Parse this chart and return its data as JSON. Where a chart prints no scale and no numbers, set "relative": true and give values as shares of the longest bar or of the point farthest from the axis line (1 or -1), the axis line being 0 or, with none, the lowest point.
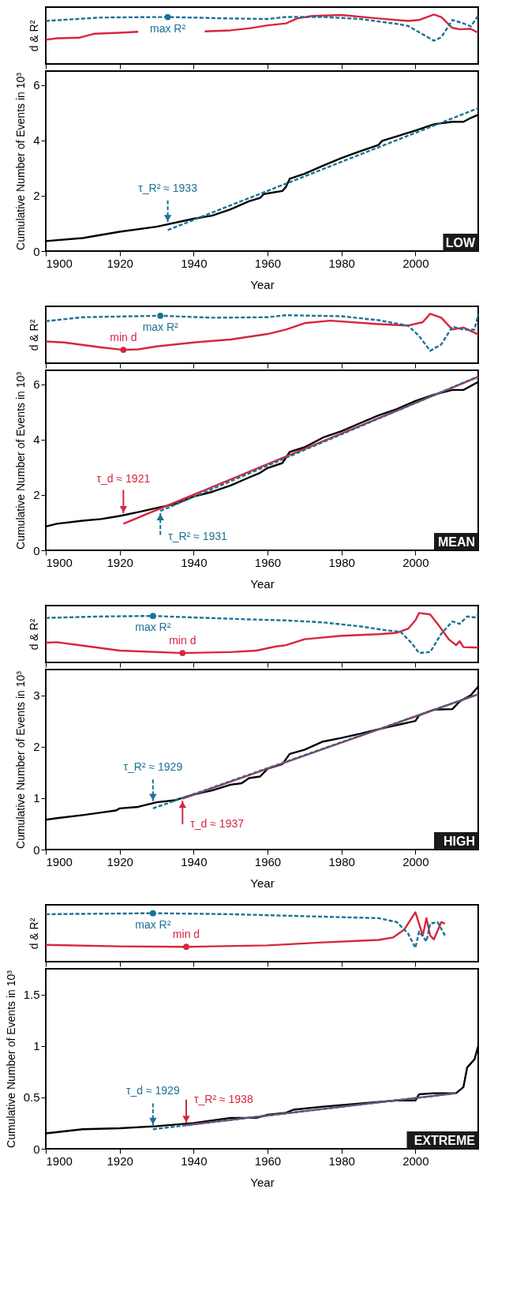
{
  "chart_data": [
    {
      "type": "line",
      "relative": true,
      "ylabel": "d & R²",
      "xlim": [
        1900,
        2017
      ],
      "xticks": [
        1900,
        1920,
        1940,
        1960,
        1980,
        2000
      ],
      "tick_labels": false,
      "series": [
        {
          "color": "#d7263d",
          "line_style": "solid",
          "x": [
            1900,
            1903,
            1909,
            1913,
            1920,
            1925,
            1934,
            1943,
            1950,
            1955,
            1960,
            1965,
            1968,
            1972,
            1980,
            1990,
            1998,
            2001,
            2005,
            2007,
            2010,
            2012,
            2015,
            2017
          ],
          "values": [
            0.49,
            0.52,
            0.53,
            0.61,
            0.63,
            0.65,
            null,
            0.66,
            0.68,
            0.72,
            0.78,
            0.82,
            0.92,
            0.97,
            0.99,
            0.92,
            0.87,
            0.89,
            1.0,
            0.95,
            0.73,
            0.7,
            0.71,
            0.63
          ]
        },
        {
          "color": "#1b7196",
          "line_style": "dashed",
          "x": [
            1900,
            1915,
            1933,
            1950,
            1960,
            1965,
            1975,
            1985,
            1995,
            1998,
            2002,
            2005,
            2007,
            2010,
            2013,
            2015,
            2017
          ],
          "values": [
            0.87,
            0.94,
            0.95,
            0.92,
            0.91,
            0.95,
            0.95,
            0.91,
            0.81,
            0.77,
            0.6,
            0.47,
            0.54,
            0.89,
            0.82,
            0.76,
            0.98
          ]
        }
      ],
      "annotations": [
        {
          "text": "max R²",
          "x": 1933,
          "y": 0.95
        }
      ]
    },
    {
      "type": "line",
      "xlabel": "Year",
      "ylabel": "Cumulative Number of Events in 10³",
      "xlim": [
        1900,
        2017
      ],
      "xticks": [
        1900,
        1920,
        1940,
        1960,
        1980,
        2000
      ],
      "ylim": [
        0,
        6.5
      ],
      "yticks": [
        0,
        2,
        4,
        6
      ],
      "series": [
        {
          "color": "#000000",
          "line_style": "solid",
          "x": [
            1900,
            1910,
            1920,
            1930,
            1940,
            1945,
            1950,
            1955,
            1958,
            1959,
            1964,
            1965,
            1966,
            1970,
            1975,
            1980,
            1985,
            1990,
            1991,
            2000,
            2005,
            2010,
            2013,
            2015,
            2017
          ],
          "values": [
            0.36,
            0.47,
            0.7,
            0.88,
            1.17,
            1.28,
            1.51,
            1.8,
            1.92,
            2.06,
            2.17,
            2.32,
            2.61,
            2.79,
            3.08,
            3.36,
            3.6,
            3.83,
            3.98,
            4.35,
            4.58,
            4.67,
            4.67,
            4.81,
            4.92
          ]
        },
        {
          "color": "#1b7196",
          "line_style": "dashed",
          "x": [
            1933,
            2017
          ],
          "values": [
            0.76,
            5.16
          ]
        }
      ],
      "annotations": [
        {
          "text": "τ_R² ≈ 1933",
          "x": 1933,
          "y": 0.97
        },
        "LOW"
      ]
    },
    {
      "type": "line",
      "relative": true,
      "ylabel": "d & R²",
      "xlim": [
        1900,
        2017
      ],
      "xticks": [
        1900,
        1920,
        1940,
        1960,
        1980,
        2000
      ],
      "tick_labels": false,
      "series": [
        {
          "color": "#d7263d",
          "line_style": "solid",
          "x": [
            1900,
            1905,
            1915,
            1921,
            1925,
            1930,
            1940,
            1950,
            1960,
            1965,
            1970,
            1977,
            1990,
            1998,
            2002,
            2004,
            2007,
            2010,
            2013,
            2017
          ],
          "values": [
            0.44,
            0.42,
            0.32,
            0.27,
            0.28,
            0.34,
            0.42,
            0.48,
            0.59,
            0.68,
            0.81,
            0.86,
            0.79,
            0.76,
            0.83,
            1.0,
            0.92,
            0.68,
            0.72,
            0.58
          ]
        },
        {
          "color": "#1b7196",
          "line_style": "dashed",
          "x": [
            1900,
            1910,
            1931,
            1945,
            1960,
            1965,
            1980,
            1990,
            1998,
            2001,
            2004,
            2007,
            2010,
            2013,
            2016,
            2017
          ],
          "values": [
            0.85,
            0.93,
            0.96,
            0.92,
            0.93,
            0.97,
            0.95,
            0.87,
            0.76,
            0.55,
            0.25,
            0.38,
            0.74,
            0.68,
            0.68,
            0.99
          ]
        }
      ],
      "annotations": [
        {
          "text": "max R²",
          "x": 1931,
          "y": 0.96
        },
        {
          "text": "min d",
          "x": 1921,
          "y": 0.27
        }
      ]
    },
    {
      "type": "line",
      "xlabel": "Year",
      "ylabel": "Cumulative Number of Events in 10³",
      "xlim": [
        1900,
        2017
      ],
      "xticks": [
        1900,
        1920,
        1940,
        1960,
        1980,
        2000
      ],
      "ylim": [
        0,
        6.5
      ],
      "yticks": [
        0,
        2,
        4,
        6
      ],
      "series": [
        {
          "color": "#000000",
          "line_style": "solid",
          "x": [
            1900,
            1903,
            1910,
            1915,
            1920,
            1925,
            1930,
            1935,
            1940,
            1945,
            1950,
            1955,
            1958,
            1960,
            1964,
            1966,
            1970,
            1975,
            1980,
            1985,
            1990,
            1995,
            2000,
            2005,
            2010,
            2013,
            2017
          ],
          "values": [
            0.86,
            0.96,
            1.07,
            1.13,
            1.24,
            1.38,
            1.53,
            1.67,
            1.94,
            2.11,
            2.34,
            2.63,
            2.8,
            2.97,
            3.15,
            3.55,
            3.72,
            4.07,
            4.3,
            4.59,
            4.87,
            5.1,
            5.39,
            5.62,
            5.79,
            5.79,
            6.08
          ]
        },
        {
          "color": "#1b7196",
          "line_style": "dashed",
          "x": [
            1931,
            2017
          ],
          "values": [
            1.42,
            6.28
          ]
        },
        {
          "color": "#d7263d",
          "line_style": "solid",
          "x": [
            1921,
            2017
          ],
          "values": [
            0.96,
            6.26
          ]
        }
      ],
      "annotations": [
        {
          "text": "τ_d ≈ 1921",
          "x": 1921,
          "y": 1.26
        },
        {
          "text": "τ_R² ≈ 1931",
          "x": 1931,
          "y": 1.42
        },
        "MEAN"
      ]
    },
    {
      "type": "line",
      "relative": true,
      "ylabel": "d & R²",
      "xlim": [
        1900,
        2017
      ],
      "xticks": [
        1900,
        1920,
        1940,
        1960,
        1980,
        2000
      ],
      "tick_labels": false,
      "series": [
        {
          "color": "#d7263d",
          "line_style": "solid",
          "x": [
            1900,
            1903,
            1910,
            1920,
            1937,
            1950,
            1957,
            1962,
            1965,
            1970,
            1980,
            1990,
            1995,
            1998,
            2000,
            2001,
            2004,
            2006,
            2009,
            2011,
            2012,
            2013,
            2017
          ],
          "values": [
            0.4,
            0.41,
            0.34,
            0.24,
            0.19,
            0.21,
            0.24,
            0.32,
            0.35,
            0.47,
            0.54,
            0.57,
            0.6,
            0.68,
            0.85,
            1.0,
            0.97,
            0.78,
            0.47,
            0.35,
            0.43,
            0.31,
            0.3
          ]
        },
        {
          "color": "#1b7196",
          "line_style": "dashed",
          "x": [
            1900,
            1915,
            1929,
            1940,
            1955,
            1965,
            1975,
            1985,
            1992,
            1996,
            1999,
            2001,
            2004,
            2007,
            2010,
            2012,
            2014,
            2016,
            2017
          ],
          "values": [
            0.9,
            0.93,
            0.94,
            0.91,
            0.87,
            0.85,
            0.81,
            0.73,
            0.65,
            0.62,
            0.39,
            0.19,
            0.21,
            0.58,
            0.83,
            0.78,
            0.93,
            0.91,
            0.97
          ]
        }
      ],
      "annotations": [
        {
          "text": "max R²",
          "x": 1929,
          "y": 0.94
        },
        {
          "text": "min d",
          "x": 1937,
          "y": 0.19
        }
      ]
    },
    {
      "type": "line",
      "xlabel": "Year",
      "ylabel": "Cumulative Number of Events in 10³",
      "xlim": [
        1900,
        2017
      ],
      "xticks": [
        1900,
        1920,
        1940,
        1960,
        1980,
        2000
      ],
      "ylim": [
        0,
        3.5
      ],
      "yticks": [
        0,
        1,
        2,
        3
      ],
      "series": [
        {
          "color": "#000000",
          "line_style": "solid",
          "x": [
            1900,
            1903,
            1910,
            1915,
            1919,
            1920,
            1925,
            1930,
            1935,
            1940,
            1945,
            1950,
            1953,
            1955,
            1958,
            1960,
            1964,
            1966,
            1970,
            1975,
            1980,
            1985,
            1990,
            1995,
            2000,
            2001,
            2005,
            2010,
            2012,
            2015,
            2017
          ],
          "values": [
            0.58,
            0.61,
            0.67,
            0.72,
            0.76,
            0.8,
            0.83,
            0.92,
            0.96,
            1.07,
            1.15,
            1.26,
            1.29,
            1.39,
            1.42,
            1.57,
            1.66,
            1.86,
            1.94,
            2.1,
            2.17,
            2.25,
            2.34,
            2.42,
            2.5,
            2.61,
            2.72,
            2.73,
            2.88,
            3.0,
            3.17
          ]
        },
        {
          "color": "#1b7196",
          "line_style": "dashed",
          "x": [
            1929,
            2017
          ],
          "values": [
            0.8,
            3.02
          ]
        },
        {
          "color": "#d7263d",
          "line_style": "solid",
          "x": [
            1937,
            2017
          ],
          "values": [
            0.99,
            3.02
          ]
        }
      ],
      "annotations": [
        {
          "text": "τ_R² ≈ 1929",
          "x": 1929,
          "y": 0.9
        },
        {
          "text": "τ_d ≈ 1937",
          "x": 1937,
          "y": 0.99
        },
        "HIGH"
      ]
    },
    {
      "type": "line",
      "relative": true,
      "ylabel": "d & R²",
      "xlim": [
        1900,
        2017
      ],
      "xticks": [
        1900,
        1920,
        1940,
        1960,
        1980,
        2000
      ],
      "tick_labels": false,
      "series": [
        {
          "color": "#d7263d",
          "line_style": "solid",
          "x": [
            1900,
            1920,
            1938,
            1960,
            1975,
            1990,
            1994,
            1997,
            2000,
            2002,
            2003,
            2004,
            2005,
            2007,
            2008
          ],
          "values": [
            0.34,
            0.31,
            0.3,
            0.33,
            0.39,
            0.44,
            0.49,
            0.65,
            1.0,
            0.53,
            0.88,
            0.53,
            0.45,
            0.8,
            0.77
          ]
        },
        {
          "color": "#1b7196",
          "line_style": "dashed",
          "x": [
            1900,
            1929,
            1950,
            1970,
            1990,
            1995,
            1998,
            2000,
            2001,
            2003,
            2004,
            2006,
            2008
          ],
          "values": [
            0.96,
            0.98,
            0.96,
            0.92,
            0.88,
            0.8,
            0.57,
            0.28,
            0.61,
            0.41,
            0.77,
            0.8,
            0.53
          ]
        }
      ],
      "annotations": [
        {
          "text": "max R²",
          "x": 1929,
          "y": 0.98
        },
        {
          "text": "min d",
          "x": 1938,
          "y": 0.3
        }
      ]
    },
    {
      "type": "line",
      "xlabel": "Year",
      "ylabel": "Cumulative Number of Events in 10³",
      "xlim": [
        1900,
        2017
      ],
      "xticks": [
        1900,
        1920,
        1940,
        1960,
        1980,
        2000
      ],
      "ylim": [
        0,
        1.75
      ],
      "yticks": [
        0,
        0.5,
        1,
        1.5
      ],
      "series": [
        {
          "color": "#000000",
          "line_style": "solid",
          "x": [
            1900,
            1910,
            1920,
            1930,
            1940,
            1950,
            1957,
            1960,
            1965,
            1967,
            1975,
            1985,
            1995,
            2000,
            2001,
            2005,
            2011,
            2013,
            2014,
            2016,
            2017
          ],
          "values": [
            0.15,
            0.19,
            0.2,
            0.22,
            0.25,
            0.3,
            0.3,
            0.33,
            0.35,
            0.38,
            0.41,
            0.44,
            0.47,
            0.47,
            0.53,
            0.54,
            0.54,
            0.6,
            0.79,
            0.87,
            1.0
          ]
        },
        {
          "color": "#1b7196",
          "line_style": "dashed",
          "x": [
            1929,
            2011
          ],
          "values": [
            0.19,
            0.54
          ]
        },
        {
          "color": "#d7263d",
          "line_style": "solid",
          "x": [
            1938,
            2011
          ],
          "values": [
            0.23,
            0.54
          ]
        }
      ],
      "annotations": [
        {
          "text": "τ_d ≈ 1929",
          "x": 1929,
          "y": 0.21
        },
        {
          "text": "τ_R² ≈ 1938",
          "x": 1938,
          "y": 0.23
        },
        "EXTREME"
      ]
    }
  ]
}
